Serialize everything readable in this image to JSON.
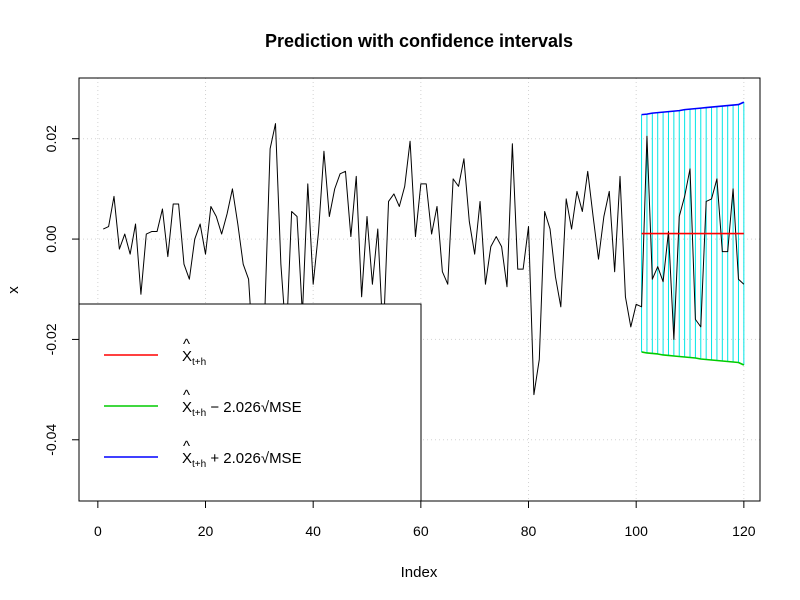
{
  "chart_data": {
    "type": "line",
    "title": "Prediction with confidence intervals",
    "xlabel": "Index",
    "ylabel": "x",
    "xlim": [
      -3.5,
      123
    ],
    "ylim": [
      -0.0522,
      0.0321
    ],
    "x_ticks": [
      0,
      20,
      40,
      60,
      80,
      100,
      120
    ],
    "y_ticks": [
      -0.04,
      -0.02,
      0.0,
      0.02
    ],
    "x_tick_labels": [
      "0",
      "20",
      "40",
      "60",
      "80",
      "100",
      "120"
    ],
    "y_tick_labels": [
      "-0.04",
      "-0.02",
      "0.00",
      "0.02"
    ],
    "grid": true,
    "legend_position": "bottom-left",
    "series": [
      {
        "color": "#000000",
        "x": [
          1,
          2,
          3,
          4,
          5,
          6,
          7,
          8,
          9,
          10,
          11,
          12,
          13,
          14,
          15,
          16,
          17,
          18,
          19,
          20,
          21,
          22,
          23,
          24,
          25,
          26,
          27,
          28,
          29,
          30,
          31,
          32,
          33,
          34,
          35,
          36,
          37,
          38,
          39,
          40,
          41,
          42,
          43,
          44,
          45,
          46,
          47,
          48,
          49,
          50,
          51,
          52,
          53,
          54,
          55,
          56,
          57,
          58,
          59,
          60,
          61,
          62,
          63,
          64,
          65,
          66,
          67,
          68,
          69,
          70,
          71,
          72,
          73,
          74,
          75,
          76,
          77,
          78,
          79,
          80,
          81,
          82,
          83,
          84,
          85,
          86,
          87,
          88,
          89,
          90,
          91,
          92,
          93,
          94,
          95,
          96,
          97,
          98,
          99,
          100,
          101,
          102,
          103,
          104,
          105,
          106,
          107,
          108,
          109,
          110,
          111,
          112,
          113,
          114,
          115,
          116,
          117,
          118,
          119,
          120
        ],
        "values": [
          0.002,
          0.0025,
          0.0085,
          -0.002,
          0.001,
          -0.003,
          0.003,
          -0.011,
          0.001,
          0.0015,
          0.0015,
          0.006,
          -0.0035,
          0.007,
          0.007,
          -0.005,
          -0.008,
          0,
          0.003,
          -0.003,
          0.0065,
          0.0045,
          0.001,
          0.005,
          0.01,
          0.003,
          -0.005,
          -0.008,
          -0.025,
          -0.028,
          -0.015,
          0.018,
          0.023,
          -0.005,
          -0.02,
          0.0055,
          0.0045,
          -0.015,
          0.011,
          -0.009,
          0.0015,
          0.0175,
          0.0045,
          0.01,
          0.013,
          0.0135,
          0.0005,
          0.0125,
          -0.0115,
          0.0045,
          -0.009,
          0.002,
          -0.02,
          0.0075,
          0.009,
          0.0065,
          0.0105,
          0.0195,
          0.0005,
          0.011,
          0.011,
          0.001,
          0.0065,
          -0.0065,
          -0.009,
          0.012,
          0.0105,
          0.016,
          0.0035,
          -0.003,
          0.0075,
          -0.009,
          -0.0015,
          0.0005,
          -0.0015,
          -0.0095,
          0.019,
          -0.006,
          -0.006,
          0.0025,
          -0.031,
          -0.024,
          0.0055,
          0.002,
          -0.0075,
          -0.0135,
          0.008,
          0.002,
          0.0095,
          0.0055,
          0.0135,
          0.0045,
          -0.004,
          0.0045,
          0.0095,
          -0.0065,
          0.0125,
          -0.0115,
          -0.0175,
          -0.013,
          -0.0135,
          0.0205,
          -0.008,
          -0.0055,
          -0.0085,
          0.0015,
          -0.02,
          0.0045,
          0.0085,
          0.014,
          -0.016,
          -0.0175,
          0.0075,
          0.008,
          0.012,
          -0.0025,
          -0.0025,
          0.01,
          -0.008,
          -0.009
        ]
      },
      {
        "color": "#ff0000",
        "x": [
          101,
          102,
          103,
          104,
          105,
          106,
          107,
          108,
          109,
          110,
          111,
          112,
          113,
          114,
          115,
          116,
          117,
          118,
          119,
          120
        ],
        "values": [
          0.0011,
          0.0011,
          0.0011,
          0.0011,
          0.0011,
          0.0011,
          0.0011,
          0.0011,
          0.0011,
          0.0011,
          0.0011,
          0.0011,
          0.0011,
          0.0011,
          0.0011,
          0.0011,
          0.0011,
          0.0011,
          0.0011,
          0.0011
        ]
      },
      {
        "color": "#00cc00",
        "x": [
          101,
          102,
          103,
          104,
          105,
          106,
          107,
          108,
          109,
          110,
          111,
          112,
          113,
          114,
          115,
          116,
          117,
          118,
          119,
          120
        ],
        "values": [
          -0.0225,
          -0.0227,
          -0.0228,
          -0.0229,
          -0.0231,
          -0.0232,
          -0.0233,
          -0.0234,
          -0.0235,
          -0.0236,
          -0.0237,
          -0.0239,
          -0.024,
          -0.0241,
          -0.0242,
          -0.0243,
          -0.0244,
          -0.0245,
          -0.0246,
          -0.0251
        ]
      },
      {
        "color": "#0000ff",
        "x": [
          101,
          102,
          103,
          104,
          105,
          106,
          107,
          108,
          109,
          110,
          111,
          112,
          113,
          114,
          115,
          116,
          117,
          118,
          119,
          120
        ],
        "values": [
          0.0248,
          0.0249,
          0.0251,
          0.0252,
          0.0253,
          0.0254,
          0.0255,
          0.0256,
          0.0258,
          0.0259,
          0.026,
          0.0261,
          0.0262,
          0.0263,
          0.0264,
          0.0265,
          0.0266,
          0.0267,
          0.0268,
          0.0273
        ]
      }
    ],
    "interval_bars": {
      "color": "#00e5e5",
      "x": [
        101,
        102,
        103,
        104,
        105,
        106,
        107,
        108,
        109,
        110,
        111,
        112,
        113,
        114,
        115,
        116,
        117,
        118,
        119,
        120
      ]
    },
    "legend": {
      "entries": [
        {
          "color": "#ff0000",
          "hat": "^",
          "main": "X",
          "sub": "t+h",
          "rest": ""
        },
        {
          "color": "#00cc00",
          "hat": "^",
          "main": "X",
          "sub": "t+h",
          "rest": " − 2.026√MSE"
        },
        {
          "color": "#0000ff",
          "hat": "^",
          "main": "X",
          "sub": "t+h",
          "rest": " + 2.026√MSE"
        }
      ]
    }
  }
}
